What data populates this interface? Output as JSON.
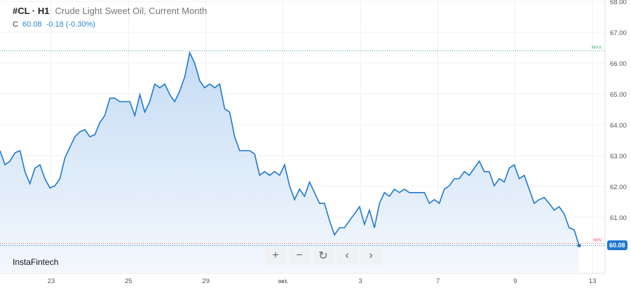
{
  "header": {
    "symbol": "#CL · H1",
    "name": "Crude Light Sweet Oil, Current Month",
    "close_label": "C",
    "close": "60.08",
    "change": "-0.18 (-0.30%)"
  },
  "brand": "InstaFintech",
  "controls": {
    "zoom_in": "+",
    "zoom_out": "−",
    "reset": "↻",
    "prev": "‹",
    "next": "›"
  },
  "markers": {
    "max_label": "MAX",
    "min_label": "MIN",
    "max_color": "#3cb371",
    "min_color": "#f06070"
  },
  "colors": {
    "line": "#1f78d1",
    "fill": "#cfe2f7"
  },
  "chart_data": {
    "type": "area",
    "title": "Crude Light Sweet Oil, Current Month",
    "ylim": [
      60,
      68
    ],
    "y_ticks": [
      "61.00",
      "62.00",
      "63.00",
      "64.00",
      "65.00",
      "66.00",
      "67.00",
      "68.00"
    ],
    "x_ticks": [
      "23",
      "25",
      "29",
      "окт.",
      "3",
      "7",
      "9",
      "13"
    ],
    "max_value": 66.4,
    "min_value": 60.08,
    "last_value": "60.08",
    "grid": true,
    "values": [
      63.16,
      62.7,
      62.82,
      63.09,
      63.16,
      62.48,
      62.09,
      62.59,
      62.7,
      62.25,
      61.95,
      62.02,
      62.25,
      62.93,
      63.27,
      63.61,
      63.77,
      63.84,
      63.61,
      63.68,
      64.07,
      64.3,
      64.86,
      64.86,
      64.75,
      64.75,
      64.75,
      64.3,
      64.98,
      64.41,
      64.75,
      65.32,
      65.2,
      65.32,
      64.98,
      64.75,
      65.09,
      65.55,
      66.34,
      66.0,
      65.43,
      65.2,
      65.32,
      65.2,
      65.32,
      64.52,
      64.41,
      63.61,
      63.16,
      63.16,
      63.16,
      63.05,
      62.36,
      62.48,
      62.36,
      62.48,
      62.36,
      62.7,
      62.02,
      61.57,
      61.91,
      61.68,
      62.14,
      61.8,
      61.45,
      61.45,
      60.89,
      60.43,
      60.66,
      60.66,
      60.89,
      61.11,
      61.34,
      60.77,
      61.23,
      60.66,
      61.45,
      61.8,
      61.68,
      61.91,
      61.8,
      61.91,
      61.8,
      61.8,
      61.8,
      61.8,
      61.45,
      61.57,
      61.45,
      61.91,
      62.02,
      62.25,
      62.25,
      62.48,
      62.36,
      62.59,
      62.82,
      62.48,
      62.48,
      62.02,
      62.25,
      62.14,
      62.59,
      62.7,
      62.25,
      62.36,
      61.91,
      61.45,
      61.57,
      61.64,
      61.45,
      61.23,
      61.34,
      61.11,
      60.66,
      60.59,
      60.08
    ]
  }
}
